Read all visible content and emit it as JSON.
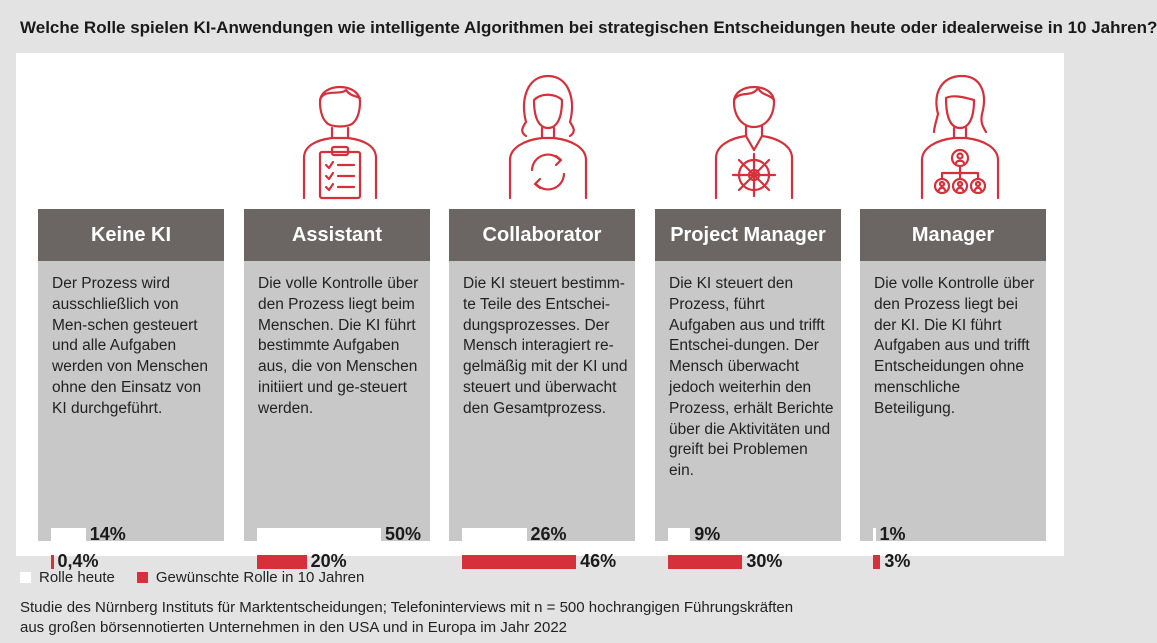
{
  "title": "Welche Rolle spielen KI-Anwendungen wie intelligente Algorithmen bei strategischen Entscheidungen heute oder idealerweise in 10 Jahren?",
  "colors": {
    "today": "#ffffff",
    "future": "#d6303a",
    "header": "#6b6563",
    "icon": "#d6303a"
  },
  "columns": [
    {
      "title": "Keine KI",
      "icon": "none",
      "description": "Der Prozess wird ausschließlich von Men-schen gesteuert und alle Aufgaben werden von Menschen ohne den Einsatz von KI durchgeführt.",
      "today_label": "14%",
      "future_label": "0,4%"
    },
    {
      "title": "Assistant",
      "icon": "person-clipboard-icon",
      "description": "Die volle Kontrolle über den Prozess liegt beim Menschen. Die KI führt bestimmte Aufgaben aus, die von Menschen initiiert und ge-steuert werden.",
      "today_label": "50%",
      "future_label": "20%"
    },
    {
      "title": "Collaborator",
      "icon": "person-cycle-icon",
      "description": "Die KI steuert bestimm-te Teile des Entschei-dungsprozesses. Der Mensch interagiert re-gelmäßig mit der KI und steuert und überwacht den Gesamtprozess.",
      "today_label": "26%",
      "future_label": "46%"
    },
    {
      "title": "Project Manager",
      "icon": "person-helm-icon",
      "description": "Die KI steuert den Prozess, führt Aufgaben aus und trifft Entschei-dungen. Der Mensch überwacht jedoch weiterhin den Prozess, erhält Berichte über die Aktivitäten und greift bei Problemen ein.",
      "today_label": "9%",
      "future_label": "30%"
    },
    {
      "title": "Manager",
      "icon": "person-hierarchy-icon",
      "description": "Die volle Kontrolle über den Prozess liegt bei der KI. Die KI führt Aufgaben aus und trifft Entscheidungen ohne menschliche Beteiligung.",
      "today_label": "1%",
      "future_label": "3%"
    }
  ],
  "legend": {
    "today": "Rolle heute",
    "future": "Gewünschte Rolle in 10 Jahren"
  },
  "footer": {
    "line1": "Studie des Nürnberg Instituts für Marktentscheidungen; Telefoninterviews mit n = 500 hochrangigen Führungskräften",
    "line2": "aus großen börsennotierten Unternehmen in den USA und in Europa im Jahr 2022"
  },
  "chart_data": {
    "type": "bar",
    "categories": [
      "Keine KI",
      "Assistant",
      "Collaborator",
      "Project Manager",
      "Manager"
    ],
    "series": [
      {
        "name": "Rolle heute",
        "values": [
          14,
          50,
          26,
          9,
          1
        ]
      },
      {
        "name": "Gewünschte Rolle in 10 Jahren",
        "values": [
          0.4,
          20,
          46,
          30,
          3
        ]
      }
    ],
    "ylim": [
      0,
      50
    ],
    "legend": "bottom-left"
  }
}
